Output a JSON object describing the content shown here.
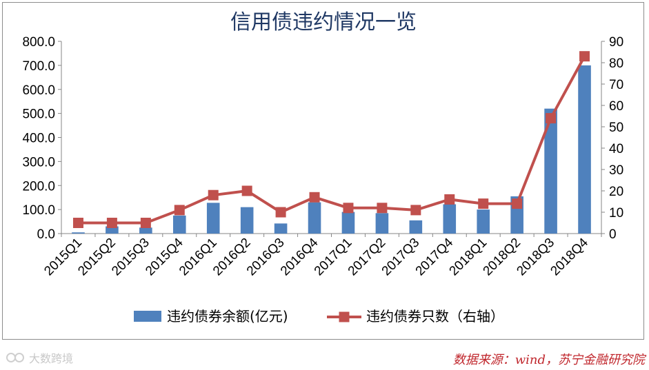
{
  "chart_data": {
    "type": "bar+line",
    "title": "信用债违约情况一览",
    "categories": [
      "2015Q1",
      "2015Q2",
      "2015Q3",
      "2015Q4",
      "2016Q1",
      "2016Q2",
      "2016Q3",
      "2016Q4",
      "2017Q1",
      "2017Q2",
      "2017Q3",
      "2017Q4",
      "2018Q1",
      "2018Q2",
      "2018Q3",
      "2018Q4"
    ],
    "series": [
      {
        "name": "违约债券余额(亿元)",
        "type": "bar",
        "axis": "left",
        "color": "#4f81bd",
        "values": [
          5,
          30,
          25,
          75,
          128,
          110,
          42,
          130,
          90,
          85,
          55,
          122,
          100,
          155,
          520,
          700
        ]
      },
      {
        "name": "违约债券只数（右轴）",
        "type": "line",
        "axis": "right",
        "color": "#c0504d",
        "values": [
          5,
          5,
          5,
          11,
          18,
          20,
          10,
          17,
          12,
          12,
          11,
          16,
          14,
          14,
          54,
          83
        ]
      }
    ],
    "y_left": {
      "min": 0,
      "max": 800,
      "step": 100,
      "ticks": [
        "0.0",
        "100.0",
        "200.0",
        "300.0",
        "400.0",
        "500.0",
        "600.0",
        "700.0",
        "800.0"
      ]
    },
    "y_right": {
      "min": 0,
      "max": 90,
      "step": 10,
      "ticks": [
        "0",
        "10",
        "20",
        "30",
        "40",
        "50",
        "60",
        "70",
        "80",
        "90"
      ]
    },
    "legend_position": "bottom",
    "grid": false
  },
  "source": "数据来源：wind，苏宁金融研究院",
  "watermark": "大数跨境",
  "colors": {
    "title": "#1f3864",
    "bar": "#4f81bd",
    "line": "#c0504d",
    "source": "#c0272d"
  }
}
